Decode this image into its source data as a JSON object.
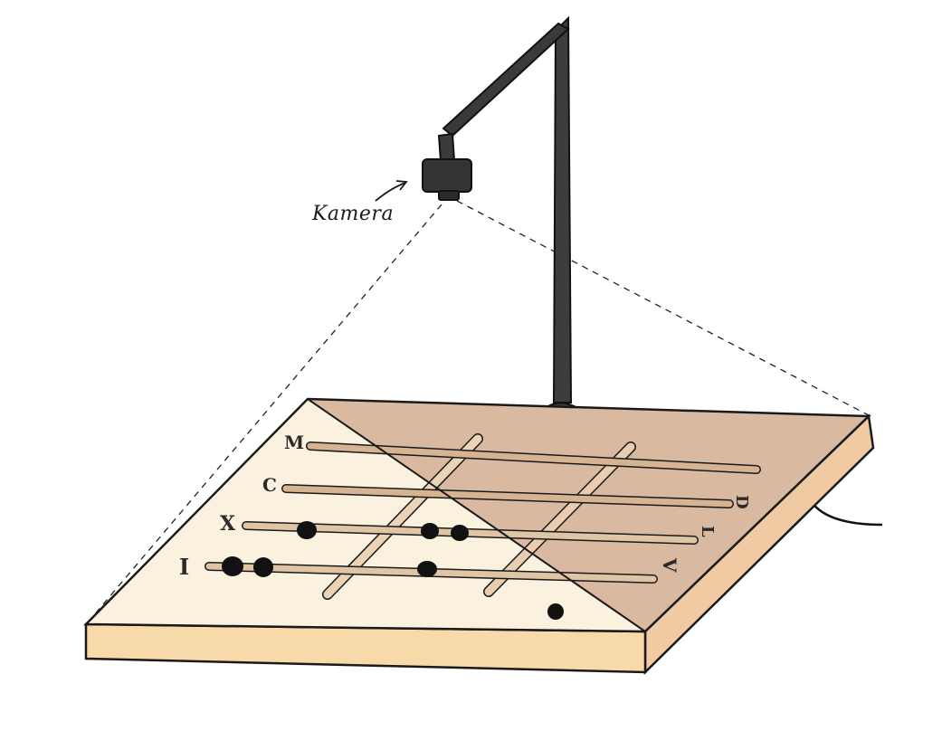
{
  "labels": {
    "camera": "Kamera",
    "row_m": "M",
    "row_c": "C",
    "row_x": "X",
    "row_i": "I",
    "right_d": "D",
    "right_l": "L",
    "right_v": "V"
  },
  "colors": {
    "board_front_light": "#fbf1df",
    "board_back_shaded": "#d9b9a0",
    "board_edge": "#f5d7a8",
    "board_side_shade": "#efcaa3",
    "rod": "#d8b898",
    "rod_light": "#f0dcc0",
    "bead": "#111111",
    "stand": "#3a3a3a",
    "outline": "#1a1a1a"
  }
}
